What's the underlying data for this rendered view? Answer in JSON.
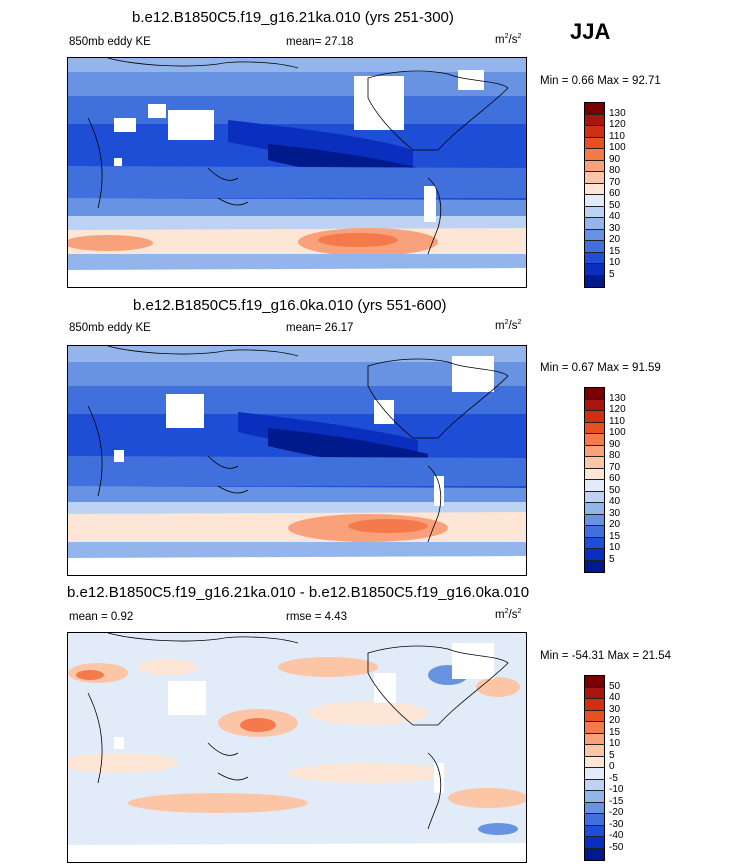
{
  "season": "JJA",
  "units_base": "m",
  "units_sup1": "2",
  "units_mid": "/s",
  "units_sup2": "2",
  "panel1": {
    "title": "b.e12.B1850C5.f19_g16.21ka.010 (yrs 251-300)",
    "left": "850mb eddy KE",
    "center": "mean=  27.18",
    "minmax": "Min =   0.66 Max =  92.71"
  },
  "panel2": {
    "title": "b.e12.B1850C5.f19_g16.0ka.010 (yrs 551-600)",
    "left": "850mb eddy KE",
    "center": "mean=  26.17",
    "minmax": "Min =   0.67 Max =  91.59"
  },
  "panel3": {
    "title": "b.e12.B1850C5.f19_g16.21ka.010 - b.e12.B1850C5.f19_g16.0ka.010",
    "left": "mean =   0.92",
    "center": "rmse =   4.43",
    "minmax": "Min = -54.31 Max =  21.54"
  },
  "colorbar_abs": {
    "labels": [
      "130",
      "120",
      "110",
      "100",
      "90",
      "80",
      "70",
      "60",
      "50",
      "40",
      "30",
      "20",
      "15",
      "10",
      "5"
    ],
    "colors": [
      "#7a0000",
      "#a8150e",
      "#cf2f12",
      "#e8501f",
      "#f47a4c",
      "#f9a17b",
      "#fcc6a6",
      "#fde6d6",
      "#e2ecf9",
      "#bdd3f4",
      "#93b5ec",
      "#6893e2",
      "#3f70dc",
      "#1f4ed6",
      "#0a2fbf",
      "#001a8c"
    ]
  },
  "colorbar_diff": {
    "labels": [
      "50",
      "40",
      "30",
      "20",
      "15",
      "10",
      "5",
      "0",
      "-5",
      "-10",
      "-15",
      "-20",
      "-30",
      "-40",
      "-50"
    ],
    "colors": [
      "#7a0000",
      "#a8150e",
      "#cf2f12",
      "#e8501f",
      "#f47a4c",
      "#f9a17b",
      "#fcc6a6",
      "#fde6d6",
      "#e2ecf9",
      "#bdd3f4",
      "#93b5ec",
      "#6893e2",
      "#3f70dc",
      "#1f4ed6",
      "#0a2fbf",
      "#001a8c"
    ]
  }
}
